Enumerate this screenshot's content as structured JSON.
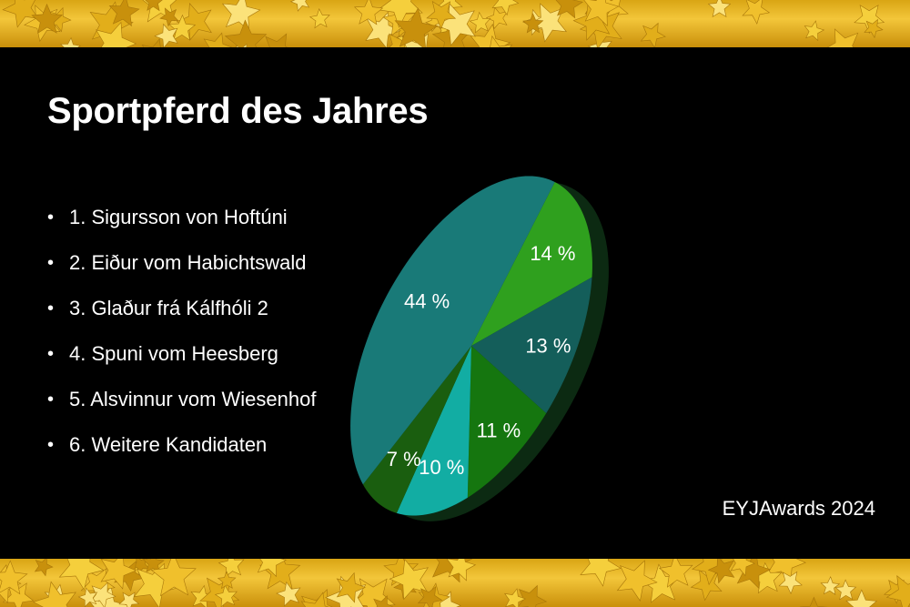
{
  "slide": {
    "title": "Sportpferd des Jahres",
    "footer": "EYJAwards 2024",
    "bullet_symbol": "•"
  },
  "entries": [
    "1. Sigursson von Hoftúni",
    "2. Eiður vom Habichtswald",
    "3. Glaður frá Kálfhóli 2",
    "4. Spuni vom Heesberg",
    "5. Alsvinnur vom Wiesenhof",
    "6. Weitere Kandidaten"
  ],
  "chart_data": {
    "type": "pie",
    "title": "",
    "slices": [
      {
        "value": 14,
        "label": "14 %",
        "color": "#2fa01e"
      },
      {
        "value": 13,
        "label": "13 %",
        "color": "#145e5a"
      },
      {
        "value": 11,
        "label": "11 %",
        "color": "#15760f"
      },
      {
        "value": 10,
        "label": "10 %",
        "color": "#12ada3"
      },
      {
        "value": 7,
        "label": "7 %",
        "color": "#1a5e0f"
      },
      {
        "value": 44,
        "label": "44 %",
        "color": "#197a78"
      }
    ],
    "legend": "none",
    "grid": false
  },
  "colors": {
    "background": "#000000",
    "text": "#ffffff",
    "star_gold": "#f3c63a"
  }
}
